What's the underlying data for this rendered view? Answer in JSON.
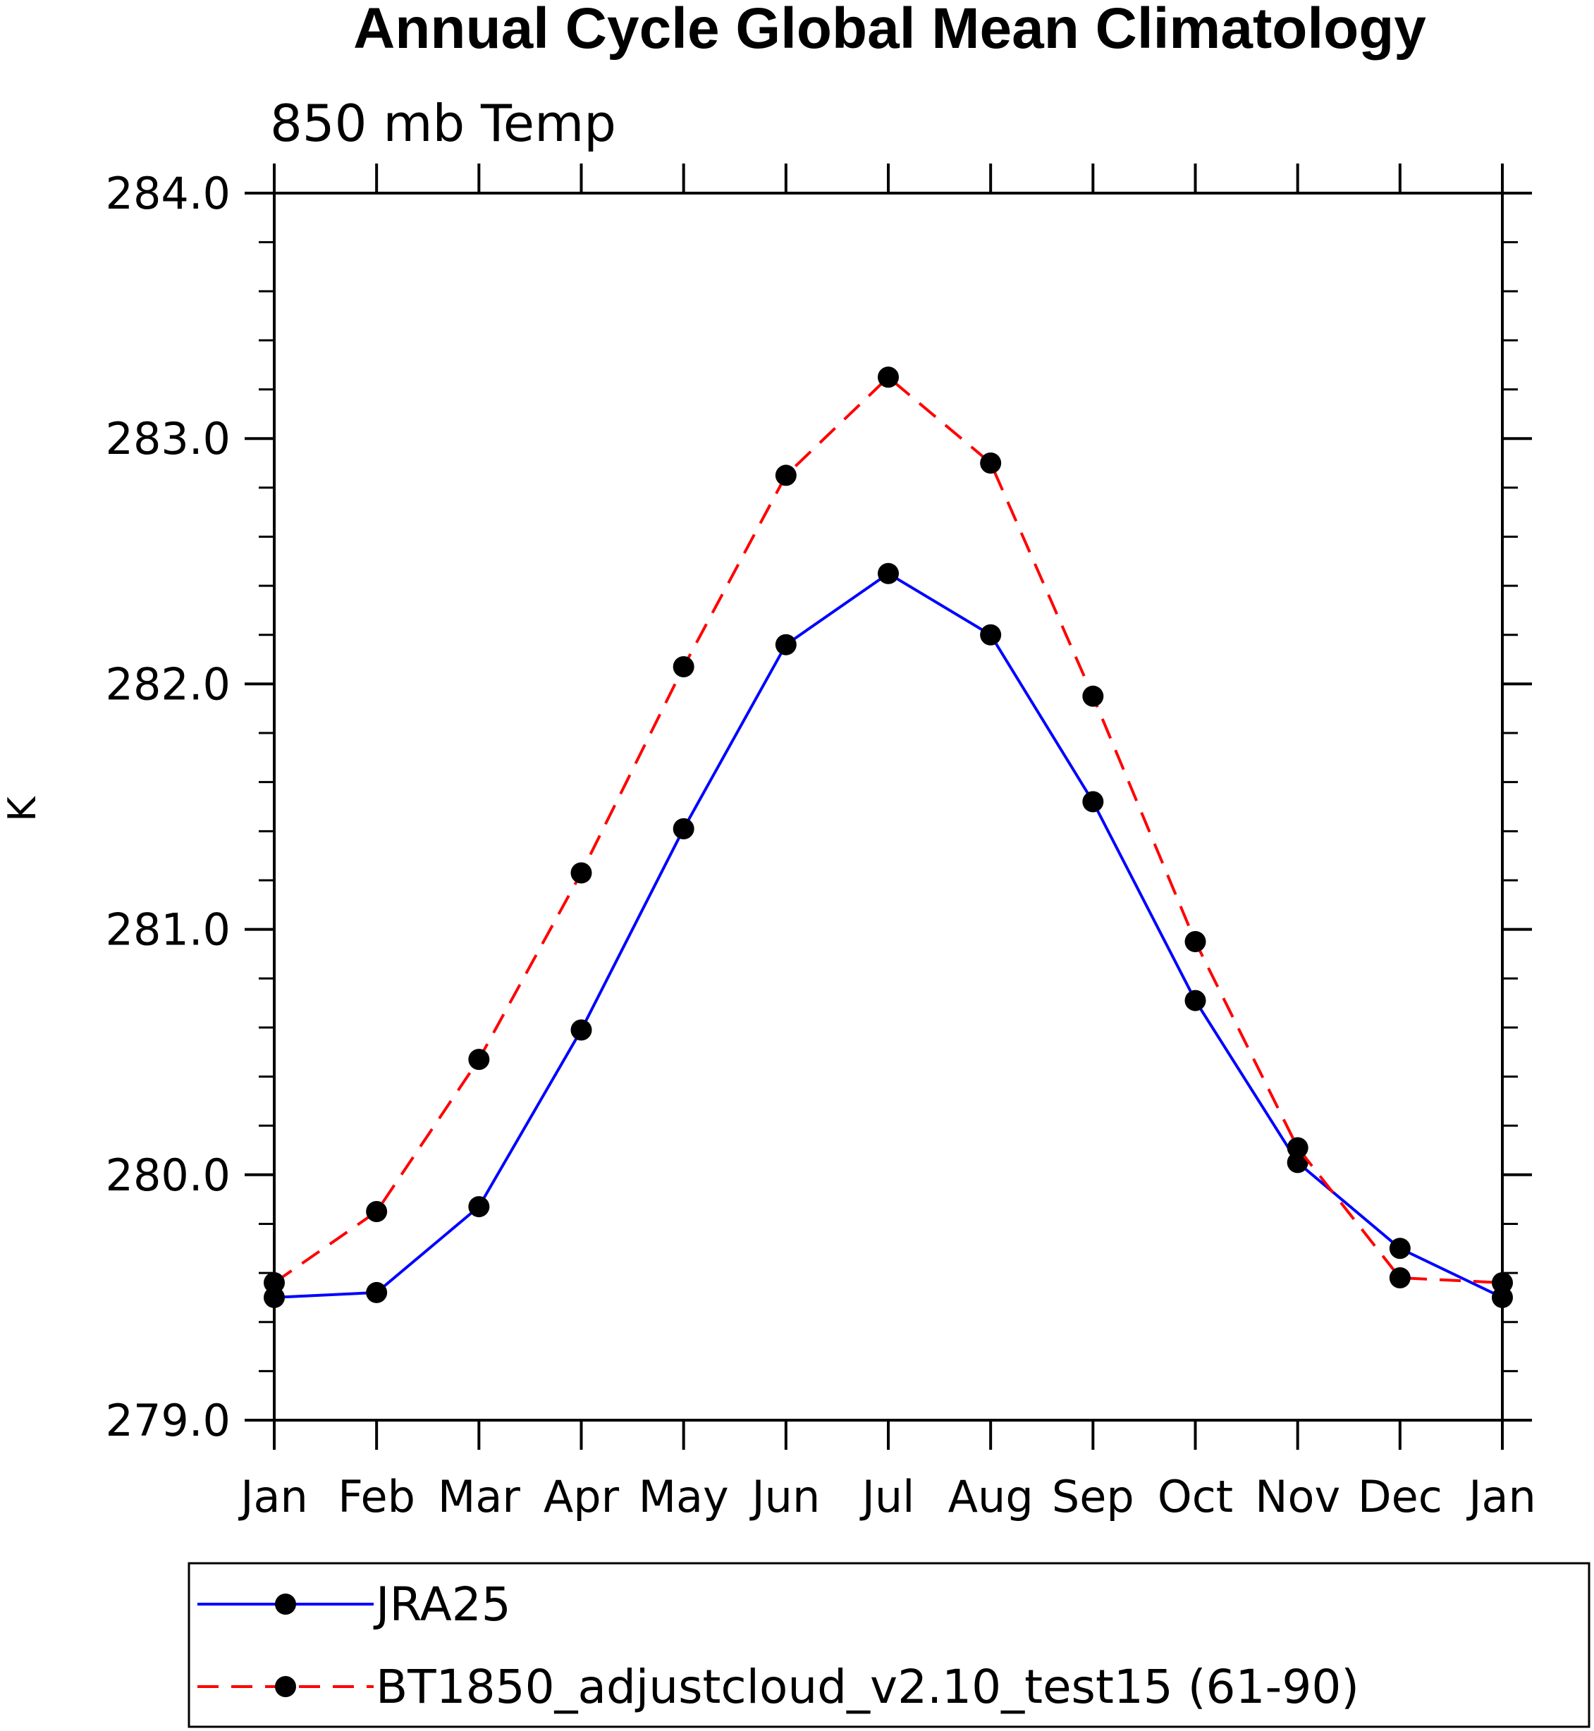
{
  "chart_data": {
    "type": "line",
    "title": "Annual Cycle Global Mean Climatology",
    "subtitle": "850 mb Temp",
    "xlabel": "",
    "ylabel": "K",
    "categories": [
      "Jan",
      "Feb",
      "Mar",
      "Apr",
      "May",
      "Jun",
      "Jul",
      "Aug",
      "Sep",
      "Oct",
      "Nov",
      "Dec",
      "Jan"
    ],
    "ylim": [
      279.0,
      284.0
    ],
    "yticks": [
      "279.0",
      "280.0",
      "281.0",
      "282.0",
      "283.0",
      "284.0"
    ],
    "grid": false,
    "legend_position": "bottom",
    "series": [
      {
        "name": "JRA25",
        "color": "#0000ff",
        "line_style": "solid",
        "marker": "filled-circle",
        "values": [
          279.5,
          279.52,
          279.87,
          280.59,
          281.41,
          282.16,
          282.45,
          282.2,
          281.52,
          280.71,
          280.05,
          279.7,
          279.5
        ]
      },
      {
        "name": "BT1850_adjustcloud_v2.10_test15 (61-90)",
        "color": "#ff0000",
        "line_style": "dashed",
        "marker": "filled-circle",
        "values": [
          279.56,
          279.85,
          280.47,
          281.23,
          282.07,
          282.85,
          283.25,
          282.9,
          281.95,
          280.95,
          280.11,
          279.58,
          279.56
        ]
      }
    ]
  }
}
